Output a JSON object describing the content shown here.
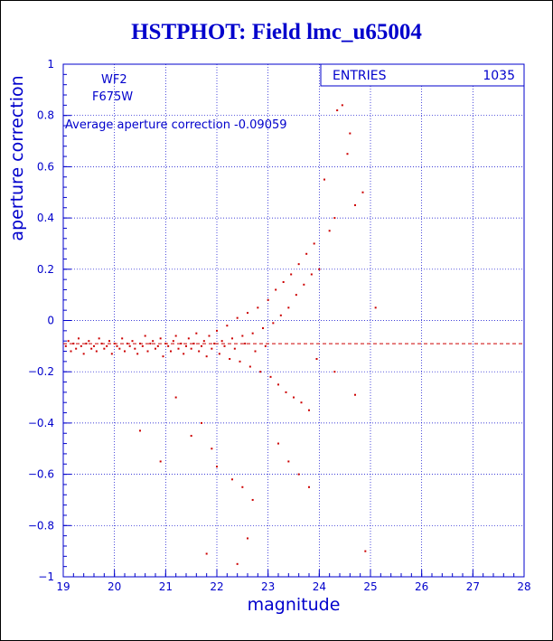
{
  "title": "HSTPHOT: Field lmc_u65004",
  "chart_data": {
    "type": "scatter",
    "xlabel": "magnitude",
    "ylabel": "aperture correction",
    "xlim": [
      19,
      28
    ],
    "ylim": [
      -1,
      1
    ],
    "x_ticks": [
      "19",
      "20",
      "21",
      "22",
      "23",
      "24",
      "25",
      "26",
      "27",
      "28"
    ],
    "y_ticks": [
      "-1",
      "-0.8",
      "-0.6",
      "-0.4",
      "-0.2",
      "0",
      "0.2",
      "0.4",
      "0.6",
      "0.8",
      "1"
    ],
    "grid": true,
    "stats_box": {
      "label": "ENTRIES",
      "value": "1035"
    },
    "annotations": [
      "WF2",
      "F675W",
      "Average aperture correction -0.09059"
    ],
    "average_line": -0.09059,
    "colors": {
      "axis": "#0000cc",
      "points": "#cc0000",
      "title": "#0000cc",
      "background": "#ffffff"
    },
    "series": [
      {
        "points": [
          [
            19.05,
            -0.1
          ],
          [
            19.1,
            -0.08
          ],
          [
            19.15,
            -0.12
          ],
          [
            19.2,
            -0.09
          ],
          [
            19.25,
            -0.11
          ],
          [
            19.3,
            -0.07
          ],
          [
            19.35,
            -0.1
          ],
          [
            19.4,
            -0.13
          ],
          [
            19.45,
            -0.09
          ],
          [
            19.5,
            -0.08
          ],
          [
            19.55,
            -0.11
          ],
          [
            19.6,
            -0.1
          ],
          [
            19.65,
            -0.12
          ],
          [
            19.7,
            -0.07
          ],
          [
            19.75,
            -0.09
          ],
          [
            19.8,
            -0.11
          ],
          [
            19.85,
            -0.1
          ],
          [
            19.9,
            -0.08
          ],
          [
            19.95,
            -0.13
          ],
          [
            20.0,
            -0.09
          ],
          [
            20.05,
            -0.1
          ],
          [
            20.1,
            -0.11
          ],
          [
            20.15,
            -0.07
          ],
          [
            20.2,
            -0.12
          ],
          [
            20.25,
            -0.09
          ],
          [
            20.3,
            -0.1
          ],
          [
            20.35,
            -0.08
          ],
          [
            20.4,
            -0.11
          ],
          [
            20.45,
            -0.13
          ],
          [
            20.5,
            -0.09
          ],
          [
            20.55,
            -0.1
          ],
          [
            20.6,
            -0.06
          ],
          [
            20.65,
            -0.12
          ],
          [
            20.7,
            -0.09
          ],
          [
            20.75,
            -0.08
          ],
          [
            20.8,
            -0.11
          ],
          [
            20.85,
            -0.1
          ],
          [
            20.9,
            -0.07
          ],
          [
            20.95,
            -0.14
          ],
          [
            21.0,
            -0.09
          ],
          [
            21.05,
            -0.1
          ],
          [
            21.1,
            -0.12
          ],
          [
            21.15,
            -0.08
          ],
          [
            21.2,
            -0.06
          ],
          [
            21.25,
            -0.11
          ],
          [
            21.3,
            -0.09
          ],
          [
            21.35,
            -0.13
          ],
          [
            21.4,
            -0.1
          ],
          [
            21.45,
            -0.07
          ],
          [
            21.5,
            -0.11
          ],
          [
            21.55,
            -0.09
          ],
          [
            21.6,
            -0.05
          ],
          [
            21.65,
            -0.12
          ],
          [
            21.7,
            -0.1
          ],
          [
            21.75,
            -0.08
          ],
          [
            21.8,
            -0.14
          ],
          [
            21.85,
            -0.06
          ],
          [
            21.9,
            -0.11
          ],
          [
            21.95,
            -0.09
          ],
          [
            22.0,
            -0.04
          ],
          [
            22.05,
            -0.13
          ],
          [
            22.1,
            -0.08
          ],
          [
            22.15,
            -0.1
          ],
          [
            22.2,
            -0.02
          ],
          [
            22.25,
            -0.15
          ],
          [
            22.3,
            -0.07
          ],
          [
            22.35,
            -0.11
          ],
          [
            22.4,
            0.01
          ],
          [
            22.45,
            -0.16
          ],
          [
            22.5,
            -0.06
          ],
          [
            22.55,
            -0.09
          ],
          [
            22.6,
            0.03
          ],
          [
            22.65,
            -0.18
          ],
          [
            22.7,
            -0.05
          ],
          [
            22.75,
            -0.12
          ],
          [
            22.8,
            0.05
          ],
          [
            22.85,
            -0.2
          ],
          [
            22.9,
            -0.03
          ],
          [
            22.95,
            -0.1
          ],
          [
            23.0,
            0.08
          ],
          [
            23.05,
            -0.22
          ],
          [
            23.1,
            -0.01
          ],
          [
            23.15,
            0.12
          ],
          [
            23.2,
            -0.25
          ],
          [
            23.25,
            0.02
          ],
          [
            23.3,
            0.15
          ],
          [
            23.35,
            -0.28
          ],
          [
            23.4,
            0.05
          ],
          [
            23.45,
            0.18
          ],
          [
            23.5,
            -0.3
          ],
          [
            23.55,
            0.1
          ],
          [
            23.6,
            0.22
          ],
          [
            23.65,
            -0.32
          ],
          [
            23.7,
            0.14
          ],
          [
            23.75,
            0.26
          ],
          [
            23.8,
            -0.35
          ],
          [
            23.85,
            0.18
          ],
          [
            23.9,
            0.3
          ],
          [
            23.95,
            -0.15
          ],
          [
            24.0,
            0.2
          ],
          [
            24.1,
            0.55
          ],
          [
            24.2,
            0.35
          ],
          [
            24.3,
            0.4
          ],
          [
            24.35,
            0.82
          ],
          [
            24.45,
            0.84
          ],
          [
            24.55,
            0.65
          ],
          [
            24.6,
            0.73
          ],
          [
            24.7,
            0.45
          ],
          [
            24.85,
            0.5
          ],
          [
            25.1,
            0.05
          ],
          [
            20.5,
            -0.43
          ],
          [
            20.9,
            -0.55
          ],
          [
            21.2,
            -0.3
          ],
          [
            21.5,
            -0.45
          ],
          [
            21.7,
            -0.4
          ],
          [
            21.9,
            -0.5
          ],
          [
            22.0,
            -0.57
          ],
          [
            22.3,
            -0.62
          ],
          [
            22.5,
            -0.65
          ],
          [
            22.6,
            -0.85
          ],
          [
            22.7,
            -0.7
          ],
          [
            23.2,
            -0.48
          ],
          [
            23.4,
            -0.55
          ],
          [
            23.6,
            -0.6
          ],
          [
            23.8,
            -0.65
          ],
          [
            22.4,
            -0.95
          ],
          [
            24.9,
            -0.9
          ],
          [
            21.8,
            -0.91
          ],
          [
            24.3,
            -0.2
          ],
          [
            24.7,
            -0.29
          ]
        ]
      }
    ]
  }
}
